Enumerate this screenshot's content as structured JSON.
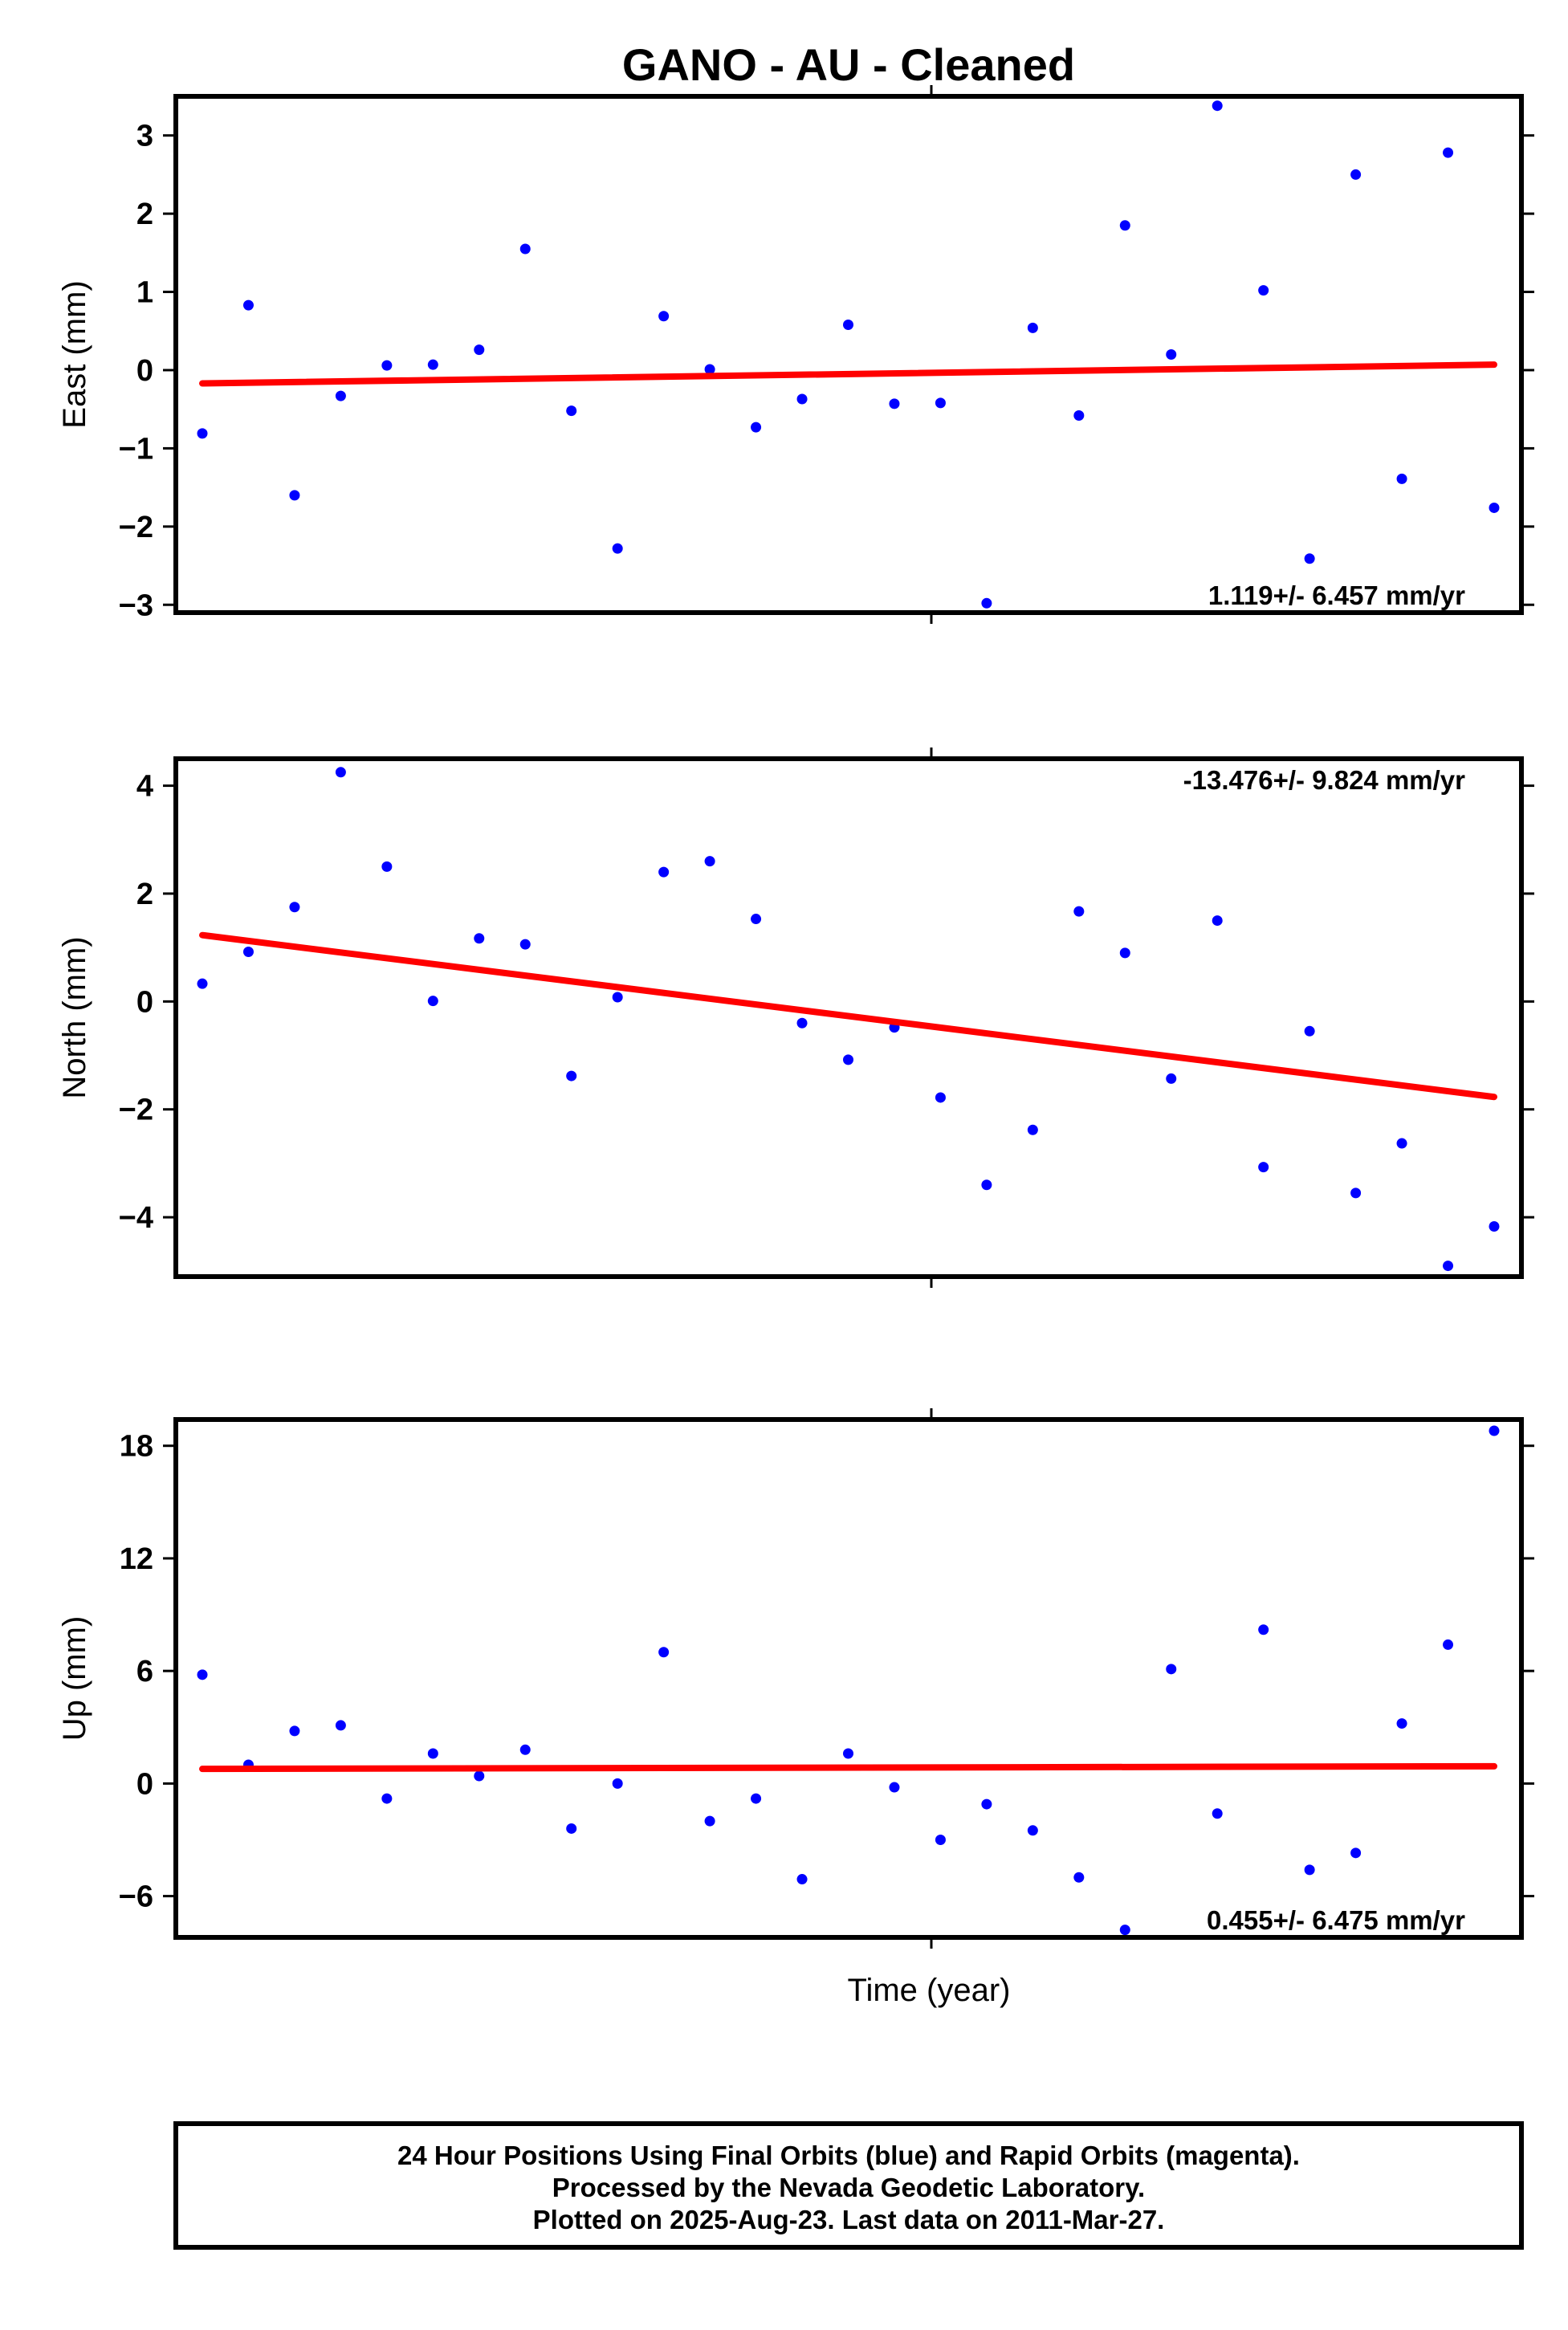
{
  "title": "GANO  - AU - Cleaned",
  "xlabel": "Time (year)",
  "footer": [
    "24 Hour Positions Using Final Orbits (blue) and Rapid Orbits (magenta).",
    "Processed by the Nevada Geodetic Laboratory.",
    "Plotted on 2025-Aug-23. Last data on 2011-Mar-27."
  ],
  "colors": {
    "points": "#0000ff",
    "trend": "#ff0000",
    "frame": "#000000"
  },
  "chart_data": [
    {
      "type": "scatter",
      "name": "east",
      "ylabel": "East (mm)",
      "ylim": [
        -3.1,
        3.5
      ],
      "yticks": [
        3,
        2,
        1,
        0,
        -1,
        -2,
        -3
      ],
      "ytick_labels": [
        "3",
        "2",
        "1",
        "0",
        "−1",
        "−2",
        "−3"
      ],
      "x": [
        1,
        2,
        3,
        4,
        5,
        6,
        7,
        8,
        9,
        10,
        11,
        12,
        13,
        14,
        15,
        16,
        17,
        18,
        19,
        20,
        21,
        22,
        23,
        24,
        25,
        26,
        27,
        28,
        29
      ],
      "y": [
        -0.81,
        0.83,
        -1.6,
        -0.33,
        0.06,
        0.07,
        0.26,
        1.55,
        -0.52,
        -2.28,
        0.69,
        0.01,
        -0.73,
        -0.37,
        0.58,
        -0.43,
        -0.42,
        -2.98,
        0.54,
        -0.58,
        1.85,
        0.2,
        3.38,
        1.02,
        -2.41,
        2.5,
        -1.39,
        2.78,
        -1.76
      ],
      "trend": {
        "y_start": -0.17,
        "y_end": 0.07
      },
      "rate_label": "1.119+/- 6.457 mm/yr",
      "rate_position": "bottom-right"
    },
    {
      "type": "scatter",
      "name": "north",
      "ylabel": "North (mm)",
      "ylim": [
        -5.1,
        4.5
      ],
      "yticks": [
        4,
        2,
        0,
        -2,
        -4
      ],
      "ytick_labels": [
        "4",
        "2",
        "0",
        "−2",
        "−4"
      ],
      "x": [
        1,
        2,
        3,
        4,
        5,
        6,
        7,
        8,
        9,
        10,
        11,
        12,
        13,
        14,
        15,
        16,
        17,
        18,
        19,
        20,
        21,
        22,
        23,
        24,
        25,
        26,
        27,
        28,
        29
      ],
      "y": [
        0.33,
        0.92,
        1.75,
        4.25,
        2.5,
        0.01,
        1.17,
        1.06,
        -1.38,
        0.08,
        2.4,
        2.6,
        1.53,
        -0.4,
        -1.08,
        -0.48,
        -1.78,
        -3.4,
        -2.38,
        1.67,
        0.9,
        -1.43,
        1.5,
        -3.07,
        -0.55,
        -3.55,
        -2.63,
        -4.9,
        -4.17
      ],
      "trend": {
        "y_start": 1.23,
        "y_end": -1.77
      },
      "rate_label": "-13.476+/- 9.824 mm/yr",
      "rate_position": "top-right"
    },
    {
      "type": "scatter",
      "name": "up",
      "ylabel": "Up (mm)",
      "ylim": [
        -8.2,
        19.4
      ],
      "yticks": [
        18,
        12,
        6,
        0,
        -6
      ],
      "ytick_labels": [
        "18",
        "12",
        "6",
        "0",
        "−6"
      ],
      "x": [
        1,
        2,
        3,
        4,
        5,
        6,
        7,
        8,
        9,
        10,
        11,
        12,
        13,
        14,
        15,
        16,
        17,
        18,
        19,
        20,
        21,
        22,
        23,
        24,
        25,
        26,
        27,
        28,
        29
      ],
      "y": [
        5.8,
        1.0,
        2.8,
        3.1,
        -0.8,
        1.6,
        0.4,
        1.8,
        -2.4,
        0.0,
        7.0,
        -2.0,
        -0.8,
        -5.1,
        1.6,
        -0.2,
        -3.0,
        -1.1,
        -2.5,
        -5.0,
        -7.8,
        6.1,
        -1.6,
        8.2,
        -4.6,
        -3.7,
        3.2,
        7.4,
        18.8
      ],
      "trend": {
        "y_start": 0.78,
        "y_end": 0.92
      },
      "rate_label": "0.455+/- 6.475 mm/yr",
      "rate_position": "bottom-right"
    }
  ]
}
